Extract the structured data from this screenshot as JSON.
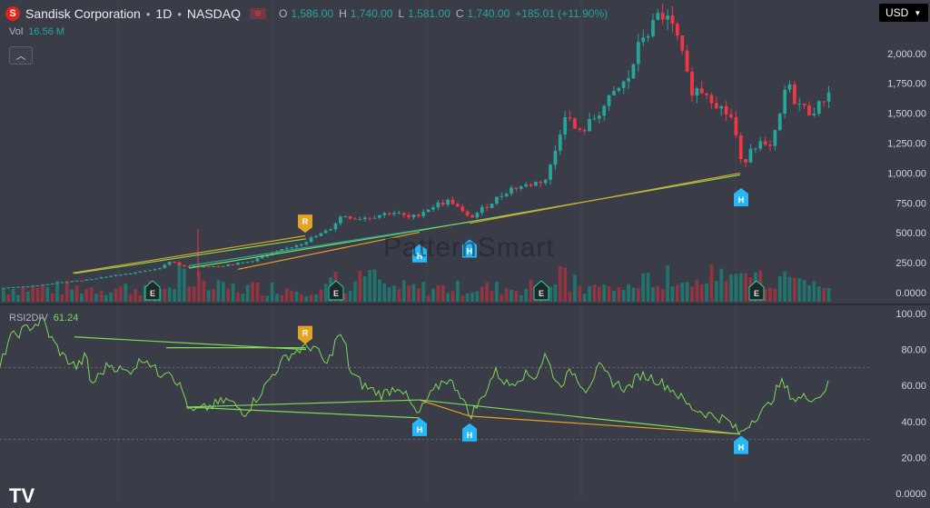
{
  "header": {
    "logo_letter": "S",
    "symbol": "Sandisk Corporation",
    "interval": "1D",
    "exchange": "NASDAQ",
    "o_label": "O",
    "o_value": "1,586.00",
    "h_label": "H",
    "h_value": "1,740.00",
    "l_label": "L",
    "l_value": "1,581.00",
    "c_label": "C",
    "c_value": "1,740.00",
    "change": "+185.01 (+11.90%)"
  },
  "volume": {
    "label": "Vol",
    "value": "16.56 M"
  },
  "indicator": {
    "label": "RSI2DIV",
    "value": "61.24"
  },
  "currency": "USD",
  "watermark": "PatternSmart",
  "tv_logo": "TV",
  "colors": {
    "up": "#26a69a",
    "down": "#f23645",
    "rsi": "#7ed957",
    "bull_marker": "#29b6f6",
    "bear_marker": "#e3a326"
  },
  "chart_data": [
    {
      "type": "candlestick",
      "title": "Sandisk Corporation · 1D · NASDAQ",
      "ylim": [
        0,
        2420
      ],
      "y_ticks": [
        "2,000.00",
        "1,750.00",
        "1,500.00",
        "1,250.00",
        "1,000.00",
        "750.00",
        "500.00",
        "250.00",
        "0.0000"
      ],
      "y_tick_values": [
        2000,
        1750,
        1500,
        1250,
        1000,
        750,
        500,
        250,
        0
      ],
      "price_keypoints": [
        [
          0,
          40
        ],
        [
          20,
          48
        ],
        [
          40,
          60
        ],
        [
          60,
          80
        ],
        [
          90,
          105
        ],
        [
          120,
          140
        ],
        [
          150,
          170
        ],
        [
          170,
          200
        ],
        [
          180,
          230
        ],
        [
          186,
          270
        ],
        [
          200,
          215
        ],
        [
          240,
          225
        ],
        [
          270,
          255
        ],
        [
          300,
          330
        ],
        [
          330,
          415
        ],
        [
          360,
          520
        ],
        [
          375,
          650
        ],
        [
          390,
          620
        ],
        [
          410,
          640
        ],
        [
          430,
          675
        ],
        [
          450,
          620
        ],
        [
          470,
          705
        ],
        [
          480,
          740
        ],
        [
          495,
          770
        ],
        [
          505,
          685
        ],
        [
          515,
          620
        ],
        [
          540,
          760
        ],
        [
          560,
          870
        ],
        [
          580,
          900
        ],
        [
          600,
          950
        ],
        [
          610,
          1200
        ],
        [
          620,
          1510
        ],
        [
          635,
          1320
        ],
        [
          650,
          1440
        ],
        [
          670,
          1620
        ],
        [
          690,
          1790
        ],
        [
          705,
          2140
        ],
        [
          715,
          2200
        ],
        [
          725,
          2340
        ],
        [
          735,
          2260
        ],
        [
          745,
          2100
        ],
        [
          758,
          1700
        ],
        [
          775,
          1690
        ],
        [
          790,
          1560
        ],
        [
          805,
          1450
        ],
        [
          815,
          1040
        ],
        [
          825,
          1230
        ],
        [
          835,
          1250
        ],
        [
          845,
          1180
        ],
        [
          855,
          1400
        ],
        [
          864,
          1760
        ],
        [
          874,
          1600
        ],
        [
          888,
          1510
        ],
        [
          900,
          1560
        ],
        [
          914,
          1740
        ]
      ],
      "volume_bars": 170,
      "signals": [
        {
          "type": "H",
          "x": 462,
          "price": 450
        },
        {
          "type": "H",
          "x": 517,
          "price": 490
        },
        {
          "type": "H",
          "x": 816,
          "price": 920
        },
        {
          "type": "R",
          "x": 336,
          "price": 470
        }
      ],
      "earnings_markers": [
        {
          "label": "E",
          "x": 168
        },
        {
          "label": "E",
          "x": 370
        },
        {
          "label": "E",
          "x": 596
        },
        {
          "label": "E",
          "x": 833
        }
      ],
      "divergence_lines": [
        {
          "color": "#7ed957",
          "from": [
            82,
            160
          ],
          "to": [
            337,
            450
          ]
        },
        {
          "color": "#e3a326",
          "from": [
            80,
            165
          ],
          "to": [
            336,
            475
          ]
        },
        {
          "color": "#7ed957",
          "from": [
            208,
            205
          ],
          "to": [
            462,
            520
          ]
        },
        {
          "color": "#e3a326",
          "from": [
            262,
            195
          ],
          "to": [
            462,
            505
          ]
        },
        {
          "color": "#26a69a",
          "from": [
            208,
            225
          ],
          "to": [
            517,
            590
          ]
        },
        {
          "color": "#7ed957",
          "from": [
            462,
            520
          ],
          "to": [
            815,
            985
          ]
        },
        {
          "color": "#e3a326",
          "from": [
            517,
            580
          ],
          "to": [
            815,
            1000
          ]
        }
      ]
    },
    {
      "type": "line",
      "title": "RSI2DIV",
      "ylim": [
        0,
        100
      ],
      "y_ticks": [
        "100.00",
        "80.00",
        "60.00",
        "40.00",
        "20.00",
        "0.0000"
      ],
      "y_tick_values": [
        100,
        80,
        60,
        40,
        20,
        0
      ],
      "reference_lines": [
        70,
        30
      ],
      "rsi_keypoints": [
        [
          0,
          70
        ],
        [
          10,
          86
        ],
        [
          30,
          92
        ],
        [
          48,
          96
        ],
        [
          55,
          87
        ],
        [
          70,
          76
        ],
        [
          85,
          70
        ],
        [
          95,
          77
        ],
        [
          100,
          60
        ],
        [
          120,
          72
        ],
        [
          140,
          67
        ],
        [
          160,
          76
        ],
        [
          175,
          66
        ],
        [
          185,
          70
        ],
        [
          200,
          58
        ],
        [
          210,
          45
        ],
        [
          230,
          48
        ],
        [
          250,
          52
        ],
        [
          270,
          45
        ],
        [
          290,
          58
        ],
        [
          300,
          66
        ],
        [
          315,
          76
        ],
        [
          330,
          80
        ],
        [
          345,
          82
        ],
        [
          360,
          71
        ],
        [
          372,
          88
        ],
        [
          380,
          84
        ],
        [
          385,
          68
        ],
        [
          400,
          60
        ],
        [
          420,
          55
        ],
        [
          440,
          60
        ],
        [
          460,
          43
        ],
        [
          470,
          52
        ],
        [
          490,
          64
        ],
        [
          505,
          58
        ],
        [
          517,
          43
        ],
        [
          530,
          52
        ],
        [
          545,
          68
        ],
        [
          560,
          60
        ],
        [
          575,
          66
        ],
        [
          590,
          65
        ],
        [
          600,
          77
        ],
        [
          615,
          60
        ],
        [
          630,
          68
        ],
        [
          645,
          58
        ],
        [
          660,
          70
        ],
        [
          675,
          62
        ],
        [
          690,
          58
        ],
        [
          705,
          66
        ],
        [
          720,
          64
        ],
        [
          740,
          58
        ],
        [
          760,
          48
        ],
        [
          780,
          44
        ],
        [
          800,
          41
        ],
        [
          815,
          33
        ],
        [
          830,
          42
        ],
        [
          845,
          48
        ],
        [
          860,
          62
        ],
        [
          875,
          52
        ],
        [
          890,
          54
        ],
        [
          900,
          53
        ],
        [
          913,
          61
        ]
      ],
      "signals": [
        {
          "type": "R",
          "x": 336,
          "value": 82
        },
        {
          "type": "H",
          "x": 462,
          "value": 43
        },
        {
          "type": "H",
          "x": 517,
          "value": 40
        },
        {
          "type": "H",
          "x": 816,
          "value": 33
        }
      ],
      "divergence_lines": [
        {
          "color": "#7ed957",
          "from": [
            82,
            87
          ],
          "to": [
            337,
            80
          ]
        },
        {
          "color": "#7ed957",
          "from": [
            183,
            81
          ],
          "to": [
            337,
            81
          ]
        },
        {
          "color": "#7ed957",
          "from": [
            205,
            48
          ],
          "to": [
            462,
            42
          ]
        },
        {
          "color": "#7ed957",
          "from": [
            205,
            48
          ],
          "to": [
            462,
            52
          ]
        },
        {
          "color": "#e3a326",
          "from": [
            462,
            52
          ],
          "to": [
            517,
            43
          ]
        },
        {
          "color": "#e3a326",
          "from": [
            517,
            43
          ],
          "to": [
            815,
            33
          ]
        },
        {
          "color": "#7ed957",
          "from": [
            462,
            52
          ],
          "to": [
            815,
            33
          ]
        }
      ]
    }
  ]
}
